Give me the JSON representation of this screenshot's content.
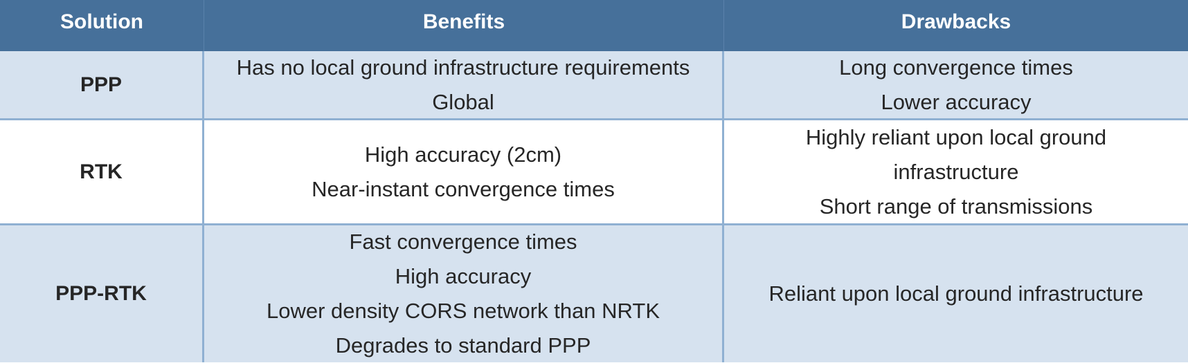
{
  "headers": {
    "solution": "Solution",
    "benefits": "Benefits",
    "drawbacks": "Drawbacks"
  },
  "rows": [
    {
      "solution": "PPP",
      "benefits": [
        "Has no local ground infrastructure requirements",
        "Global"
      ],
      "drawbacks": [
        "Long convergence times",
        "Lower accuracy"
      ]
    },
    {
      "solution": "RTK",
      "benefits": [
        "High accuracy (2cm)",
        "Near-instant convergence times"
      ],
      "drawbacks": [
        "Highly reliant upon local ground",
        "infrastructure",
        "Short range of transmissions"
      ]
    },
    {
      "solution": "PPP-RTK",
      "benefits": [
        "Fast convergence times",
        "High accuracy",
        "Lower density CORS network than NRTK",
        "Degrades to standard PPP"
      ],
      "drawbacks": [
        "Reliant upon local ground infrastructure"
      ]
    }
  ],
  "colors": {
    "header_bg": "#46709a",
    "shaded_row_bg": "#d6e2ef",
    "grid_line": "#8fb0d2"
  }
}
